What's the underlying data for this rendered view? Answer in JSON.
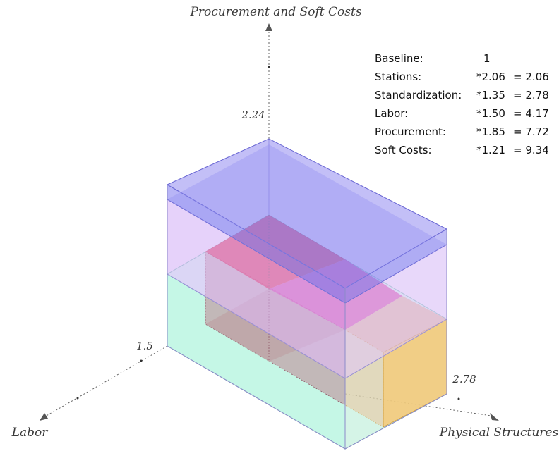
{
  "axes": {
    "vertical": {
      "title": "Procurement and Soft Costs",
      "value": "2.24"
    },
    "left": {
      "title": "Labor",
      "value": "1.5"
    },
    "right": {
      "title": "Physical Structures",
      "value": "2.78"
    }
  },
  "table": [
    {
      "label": "Baseline:",
      "factor": "1",
      "result": ""
    },
    {
      "label": "Stations:",
      "factor": "*2.06",
      "result": "= 2.06"
    },
    {
      "label": "Standardization:",
      "factor": "*1.35",
      "result": "= 2.78"
    },
    {
      "label": "Labor:",
      "factor": "*1.50",
      "result": "= 4.17"
    },
    {
      "label": "Procurement:",
      "factor": "*1.85",
      "result": "= 7.72"
    },
    {
      "label": "Soft Costs:",
      "factor": "*1.21",
      "result": "= 9.34"
    }
  ],
  "colors": {
    "green": "#9ef2d6",
    "orange": "#f7c46e",
    "red": "#e8234c",
    "magenta": "#dd3fa6",
    "lavender": "#d9b8f7",
    "blue": "#8f8cf2",
    "axis": "#555555"
  }
}
